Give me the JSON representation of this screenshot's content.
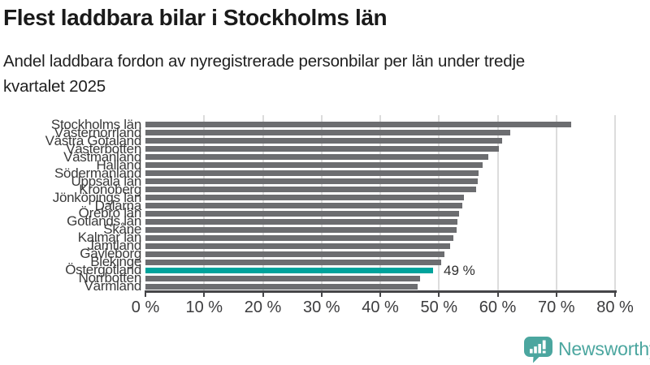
{
  "header": {
    "title": "Flest laddbara bilar i Stockholms län",
    "subtitle_line1": "Andel laddbara fordon av nyregistrerade personbilar per län under tredje",
    "subtitle_line2": "kvartalet 2025"
  },
  "chart_data": {
    "type": "bar",
    "orientation": "horizontal",
    "categories": [
      "Stockholms län",
      "Västernorrland",
      "Västra Götaland",
      "Västerbotten",
      "Västmanland",
      "Halland",
      "Södermanland",
      "Uppsala län",
      "Kronoberg",
      "Jönköpings län",
      "Dalarna",
      "Örebro län",
      "Gotlands län",
      "Skåne",
      "Kalmar län",
      "Jämtland",
      "Gävleborg",
      "Blekinge",
      "Östergötland",
      "Norrbotten",
      "Värmland"
    ],
    "values": [
      72.5,
      62.2,
      60.7,
      60.2,
      58.4,
      57.4,
      56.7,
      56.6,
      56.3,
      54.3,
      54.0,
      53.4,
      53.1,
      53.0,
      52.4,
      51.9,
      51.0,
      50.4,
      49.0,
      46.8,
      46.4
    ],
    "highlight_index": 18,
    "highlight_label": "49 %",
    "xlim": [
      0,
      80
    ],
    "x_ticks": [
      0,
      10,
      20,
      30,
      40,
      50,
      60,
      70,
      80
    ],
    "x_tick_suffix": " %",
    "grid": true,
    "legend": "none",
    "bar_color": "#6c6d70",
    "highlight_color": "#00a39c"
  },
  "branding": {
    "name": "Newsworthy",
    "logo_icon": "newsworthy-speech-bubble-chart-icon",
    "color": "#4ba69f"
  }
}
